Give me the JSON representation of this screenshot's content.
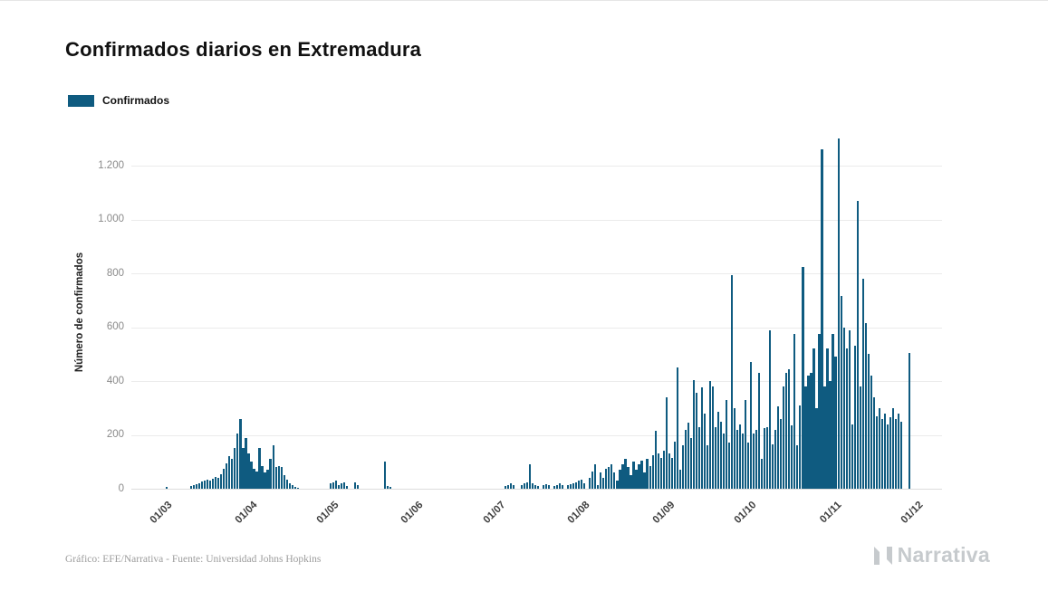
{
  "page": {
    "title": "Confirmados diarios en Extremadura",
    "footer_credit": "Gráfico: EFE/Narrativa - Fuente: Universidad Johns Hopkins",
    "brand": "Narrativa"
  },
  "legend": {
    "label": "Confirmados"
  },
  "colors": {
    "bar": "#0f5b80",
    "grid": "#ebebeb",
    "zero_line": "#dcdcdc",
    "axis_text": "#8a8a8a",
    "x_axis_text": "#3f3f3f",
    "title": "#111111",
    "footer": "#9c9c9c",
    "brand": "#c6cacd"
  },
  "chart_data": {
    "type": "bar",
    "title": "Confirmados diarios en Extremadura",
    "series_name": "Confirmados",
    "xlabel": "",
    "ylabel": "Número de confirmados",
    "ylim": [
      0,
      1300
    ],
    "grid": true,
    "legend_position": "top-left",
    "y_ticks": [
      0,
      200,
      400,
      600,
      800,
      1000,
      1200
    ],
    "y_tick_labels": [
      "0",
      "200",
      "400",
      "600",
      "800",
      "1.000",
      "1.200"
    ],
    "x_ticks": [
      {
        "label": "01/03",
        "day": 0
      },
      {
        "label": "01/04",
        "day": 31
      },
      {
        "label": "01/05",
        "day": 61
      },
      {
        "label": "01/06",
        "day": 92
      },
      {
        "label": "01/07",
        "day": 122
      },
      {
        "label": "01/08",
        "day": 153
      },
      {
        "label": "01/09",
        "day": 184
      },
      {
        "label": "01/10",
        "day": 214
      },
      {
        "label": "01/11",
        "day": 245
      },
      {
        "label": "01/12",
        "day": 275
      }
    ],
    "start_date": "01/03",
    "end_date": "01/12",
    "values": [
      0,
      0,
      8,
      0,
      0,
      0,
      0,
      0,
      0,
      0,
      0,
      10,
      14,
      18,
      22,
      26,
      30,
      34,
      30,
      38,
      45,
      40,
      55,
      75,
      95,
      120,
      110,
      150,
      205,
      260,
      150,
      190,
      130,
      100,
      75,
      65,
      150,
      85,
      60,
      70,
      110,
      160,
      80,
      85,
      80,
      50,
      35,
      20,
      12,
      8,
      5,
      0,
      0,
      0,
      0,
      0,
      0,
      0,
      0,
      0,
      0,
      0,
      20,
      25,
      30,
      15,
      20,
      25,
      10,
      0,
      0,
      25,
      15,
      0,
      0,
      0,
      0,
      0,
      0,
      0,
      0,
      0,
      100,
      10,
      8,
      0,
      0,
      0,
      0,
      0,
      0,
      0,
      0,
      0,
      0,
      0,
      0,
      0,
      0,
      0,
      0,
      0,
      0,
      0,
      0,
      0,
      0,
      0,
      0,
      0,
      0,
      0,
      0,
      0,
      0,
      0,
      0,
      0,
      0,
      0,
      0,
      0,
      0,
      0,
      0,
      0,
      10,
      15,
      20,
      12,
      0,
      0,
      15,
      20,
      25,
      90,
      20,
      15,
      10,
      0,
      14,
      18,
      12,
      0,
      10,
      15,
      20,
      14,
      0,
      12,
      18,
      22,
      25,
      30,
      35,
      20,
      0,
      40,
      65,
      90,
      15,
      60,
      40,
      75,
      80,
      90,
      60,
      30,
      70,
      90,
      110,
      80,
      50,
      100,
      70,
      90,
      105,
      60,
      110,
      85,
      125,
      215,
      130,
      115,
      140,
      340,
      130,
      115,
      175,
      450,
      70,
      160,
      220,
      245,
      190,
      405,
      355,
      230,
      375,
      280,
      160,
      400,
      380,
      230,
      285,
      250,
      205,
      330,
      170,
      795,
      300,
      220,
      240,
      205,
      330,
      170,
      470,
      205,
      220,
      430,
      110,
      225,
      230,
      590,
      165,
      220,
      305,
      260,
      380,
      430,
      445,
      235,
      575,
      160,
      310,
      825,
      380,
      420,
      430,
      520,
      300,
      575,
      1260,
      380,
      520,
      400,
      575,
      490,
      1300,
      715,
      600,
      520,
      590,
      240,
      530,
      1070,
      380,
      780,
      615,
      500,
      420,
      340,
      270,
      300,
      260,
      280,
      240,
      265,
      300,
      260,
      280,
      250,
      0,
      0,
      505,
      0
    ]
  }
}
